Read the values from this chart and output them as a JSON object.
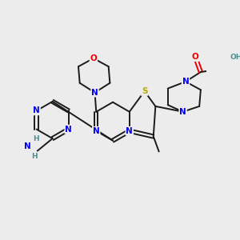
{
  "background_color": "#ececec",
  "bond_color": "#1a1a1a",
  "atom_colors": {
    "N": "#0000ee",
    "O": "#ee0000",
    "S": "#bbaa00",
    "H": "#4a9090"
  },
  "figsize": [
    3.0,
    3.0
  ],
  "dpi": 100,
  "lw": 1.4,
  "fs": 7.5,
  "fs_small": 6.5
}
